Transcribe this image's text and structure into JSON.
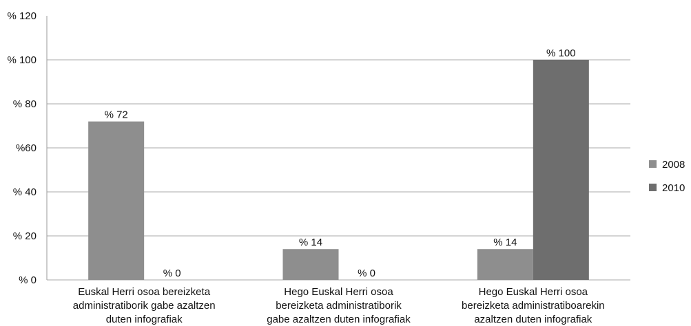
{
  "chart_data": {
    "type": "bar",
    "categories": [
      [
        "Euskal Herri osoa bereizketa",
        "administratiborik gabe azaltzen",
        "duten infografiak"
      ],
      [
        "Hego Euskal Herri osoa",
        "bereizketa administratiborik",
        "gabe azaltzen duten infografiak"
      ],
      [
        "Hego Euskal Herri osoa",
        "bereizketa administratiboarekin",
        "azaltzen duten infografiak"
      ]
    ],
    "series": [
      {
        "name": "2008",
        "color": "#8e8e8e",
        "values": [
          72,
          14,
          14
        ],
        "labels": [
          "% 72",
          "% 14",
          "% 14"
        ]
      },
      {
        "name": "2010",
        "color": "#6e6e6e",
        "values": [
          0,
          0,
          100
        ],
        "labels": [
          "% 0",
          "% 0",
          "% 100"
        ]
      }
    ],
    "ylim": [
      0,
      120
    ],
    "yticks": [
      0,
      20,
      40,
      60,
      80,
      100,
      120
    ],
    "ytick_labels": [
      "% 0",
      "% 20",
      "% 40",
      "%60",
      "% 80",
      "% 100",
      "% 120"
    ],
    "grid": true,
    "legend_position": "right",
    "title": "",
    "xlabel": "",
    "ylabel": ""
  }
}
